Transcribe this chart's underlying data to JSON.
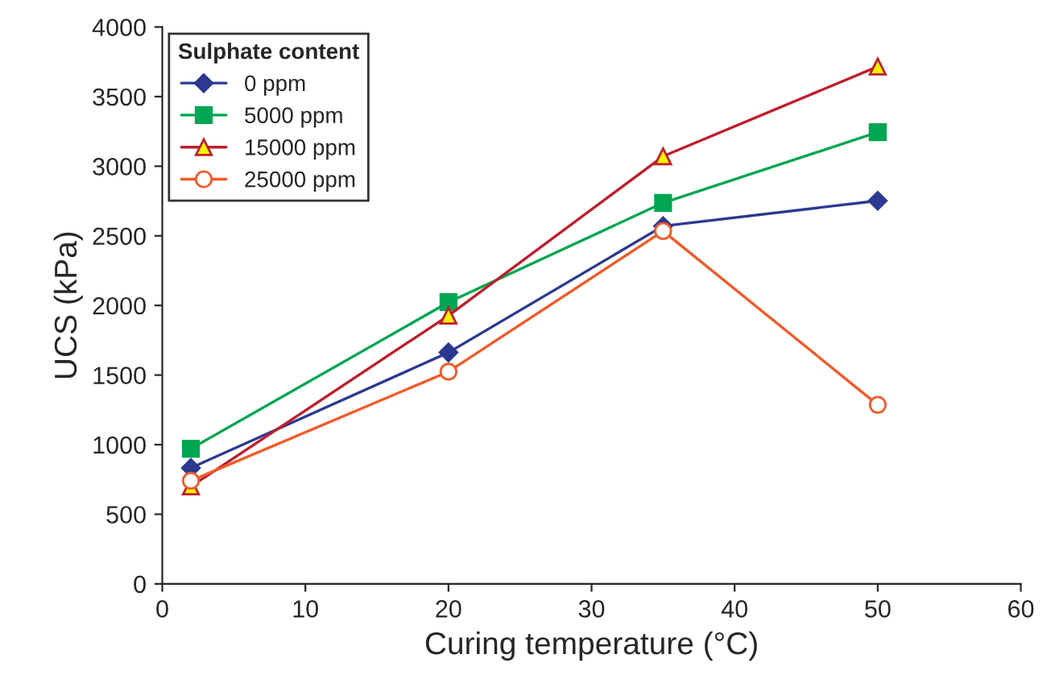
{
  "chart_data": {
    "type": "line",
    "xlabel": "Curing temperature (°C)",
    "ylabel": "UCS (kPa)",
    "legend_title": "Sulphate content",
    "legend": "top left",
    "grid": false,
    "xlim": [
      0,
      60
    ],
    "xticks": [
      0,
      10,
      20,
      30,
      40,
      50,
      60
    ],
    "ylim": [
      0,
      4000
    ],
    "yticks": [
      0,
      500,
      1000,
      1500,
      2000,
      2500,
      3000,
      3500,
      4000
    ],
    "x": [
      2,
      20,
      35,
      50
    ],
    "series": [
      {
        "name": "0 ppm",
        "color": "#2b3990",
        "marker": "diamond",
        "values": [
          833,
          1662,
          2570,
          2752
        ]
      },
      {
        "name": "5000 ppm",
        "color": "#00a651",
        "marker": "square",
        "values": [
          971,
          2023,
          2737,
          3244
        ]
      },
      {
        "name": "15000 ppm",
        "color": "#be1e2d",
        "marker": "triangle",
        "values": [
          700,
          1927,
          3071,
          3716
        ]
      },
      {
        "name": "25000 ppm",
        "color": "#f15a29",
        "marker": "circle",
        "values": [
          741,
          1524,
          2534,
          1286
        ]
      }
    ]
  }
}
